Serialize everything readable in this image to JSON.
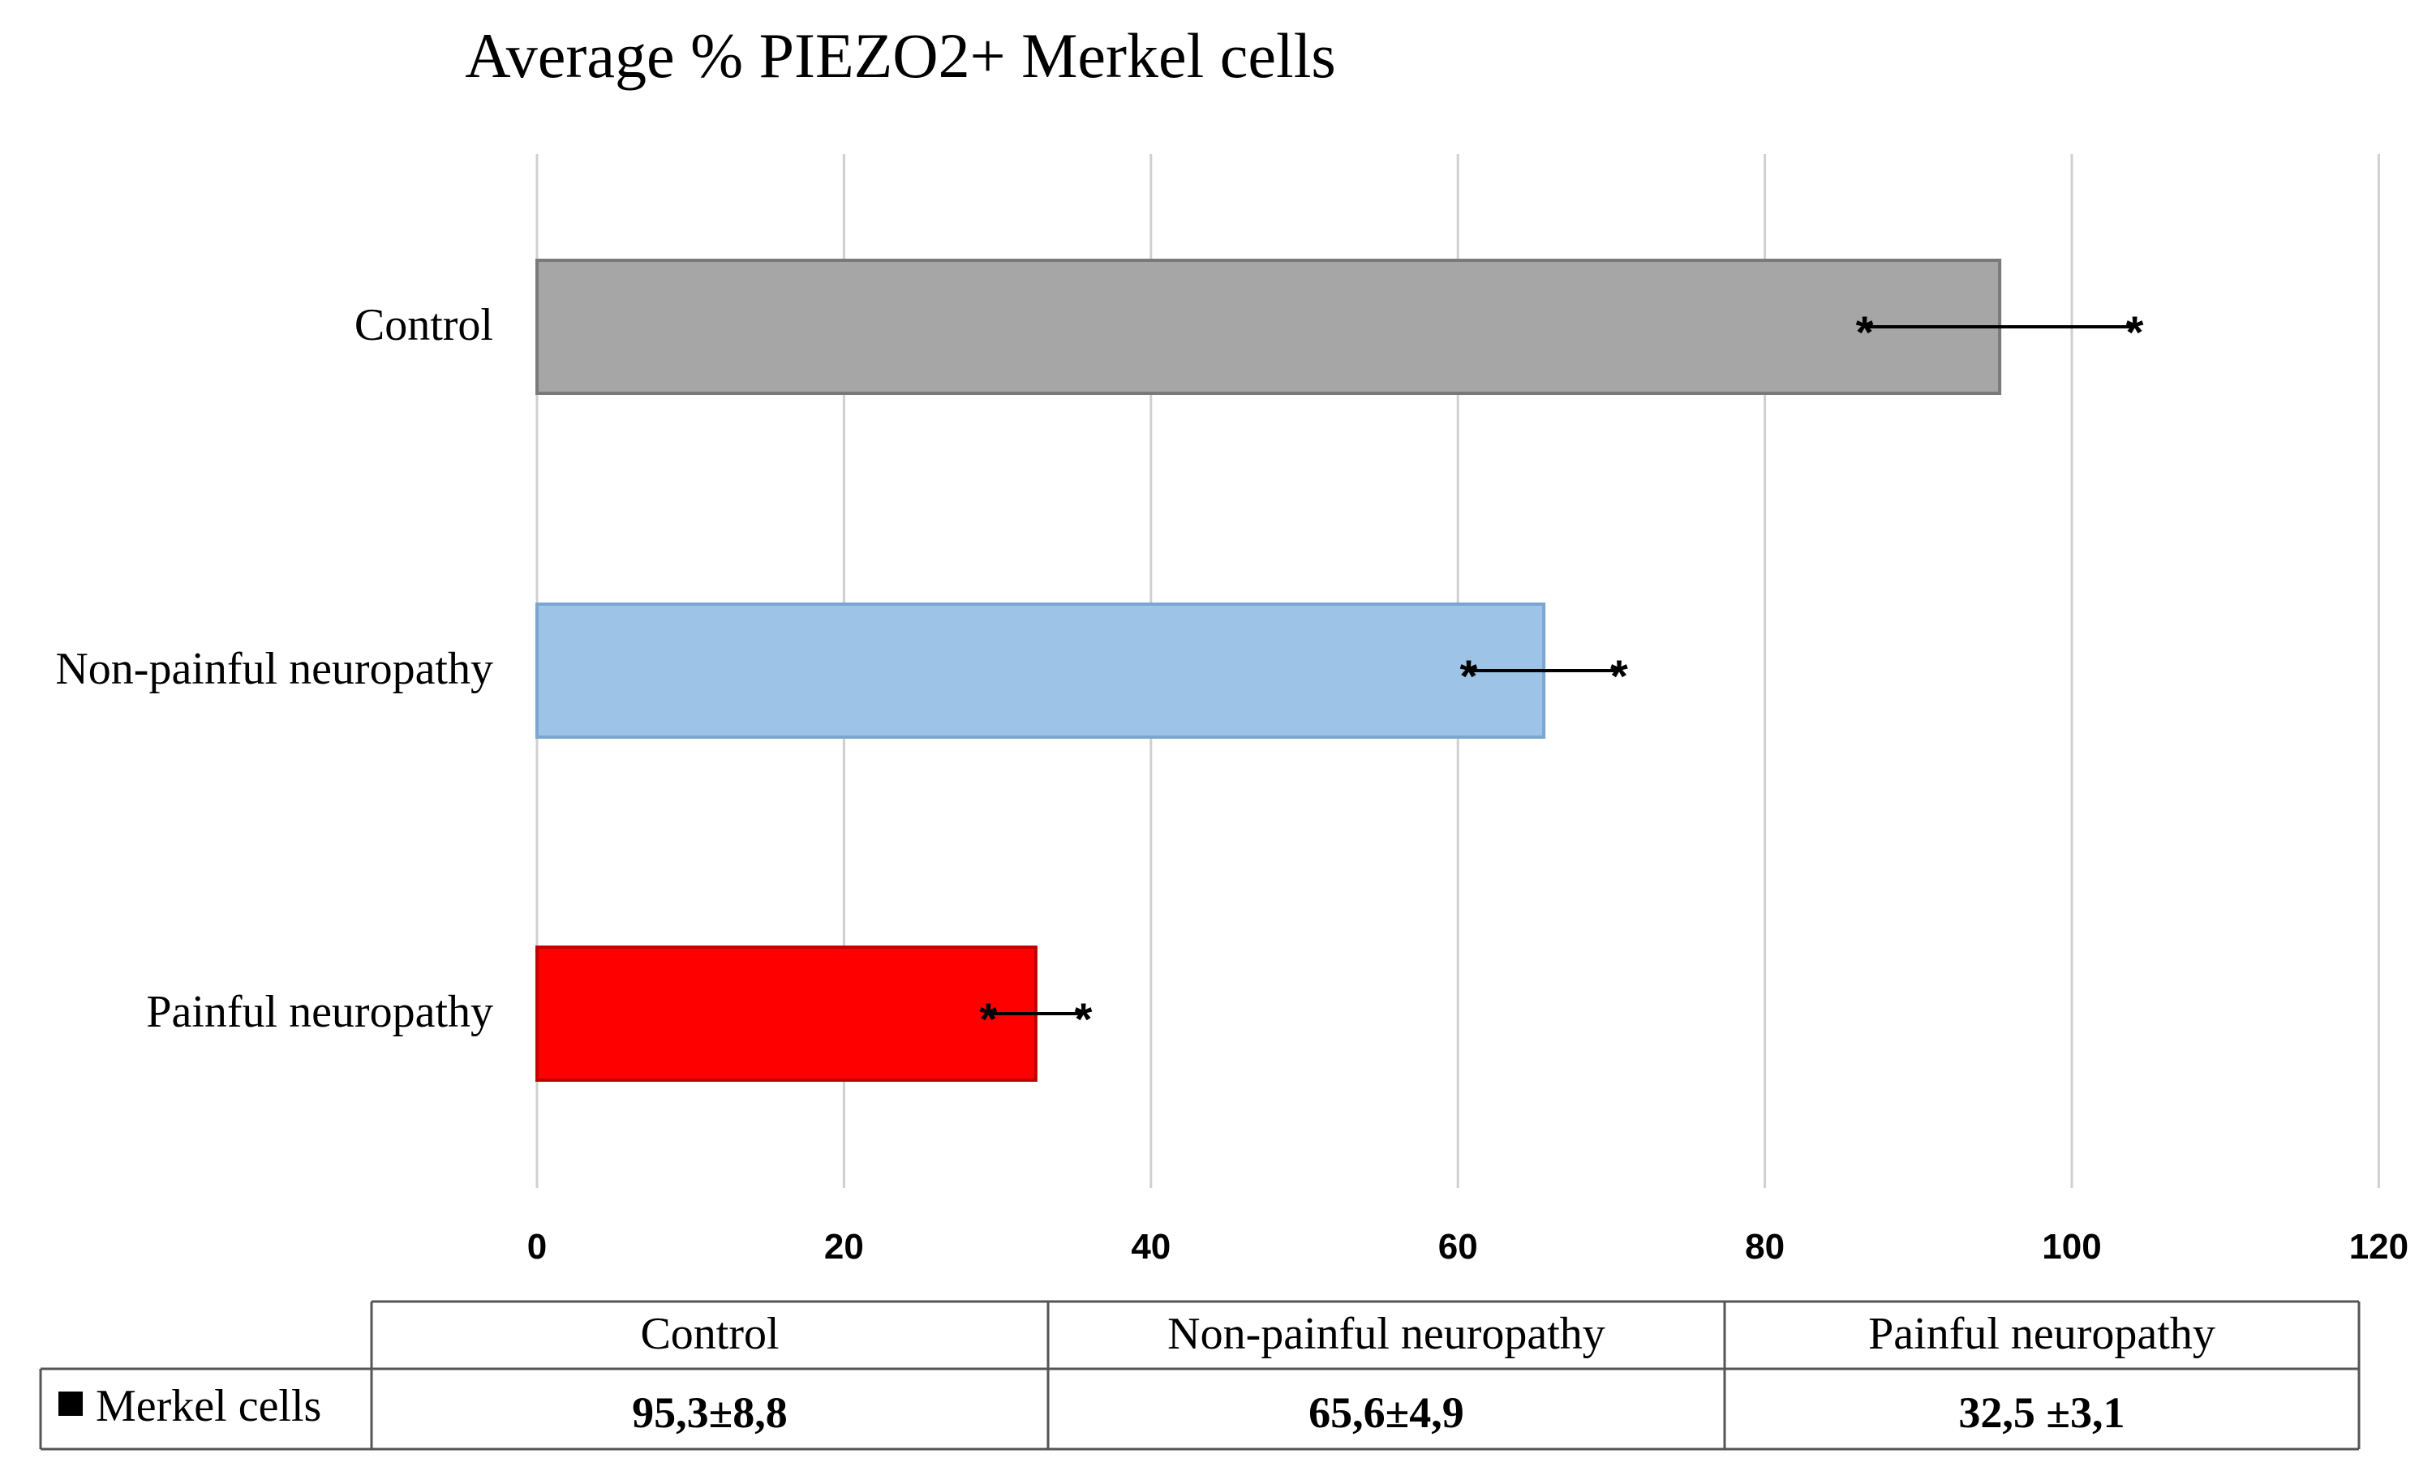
{
  "chart_data": {
    "type": "bar",
    "orientation": "horizontal",
    "title": "Average % PIEZO2+ Merkel cells",
    "categories": [
      "Control",
      "Non-painful neuropathy",
      "Painful neuropathy"
    ],
    "values": [
      95.3,
      65.6,
      32.5
    ],
    "errors": [
      8.8,
      4.9,
      3.1
    ],
    "colors": [
      "#a6a6a6",
      "#9dc3e6",
      "#ff0000"
    ],
    "error_marker": "*",
    "xlim": [
      0,
      120
    ],
    "xticks": [
      0,
      20,
      40,
      60,
      80,
      100,
      120
    ],
    "grid": true,
    "xlabel": "",
    "ylabel": "",
    "table": {
      "columns": [
        "Control",
        "Non-painful neuropathy",
        "Painful neuropathy"
      ],
      "row_label": "Merkel cells",
      "row_values": [
        "95,3±8,8",
        "65,6±4,9",
        "32,5 ±3,1"
      ]
    }
  }
}
